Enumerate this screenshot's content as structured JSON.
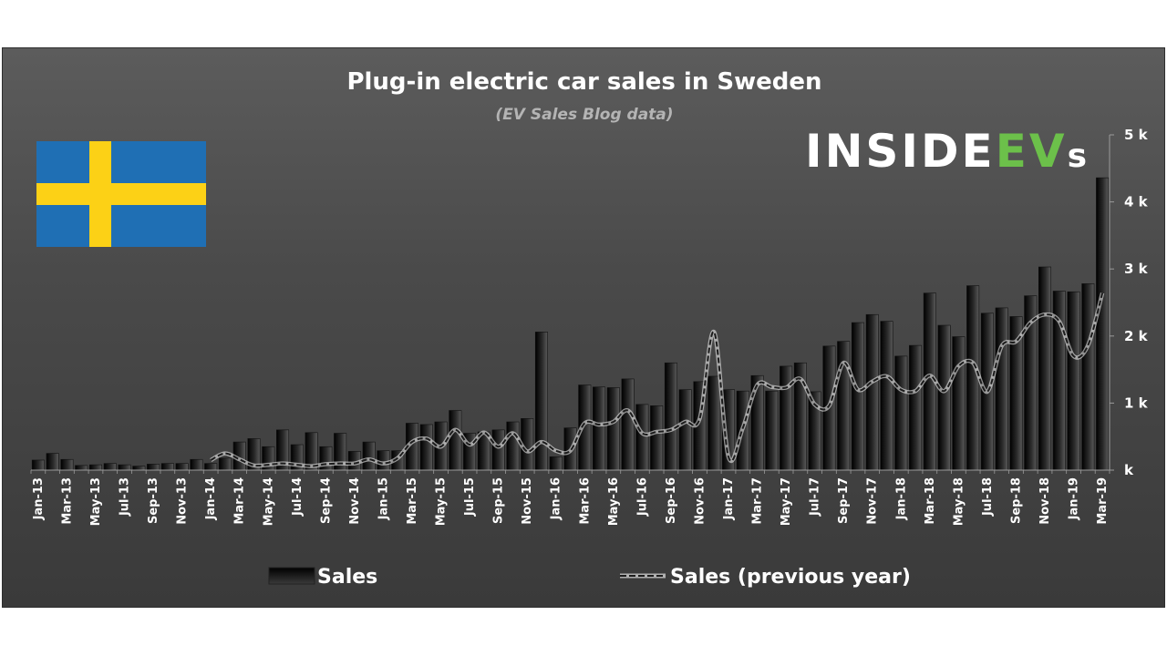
{
  "chart_data": {
    "type": "bar",
    "title": "Plug-in electric car sales in Sweden",
    "subtitle": "(EV Sales Blog data)",
    "xlabel": "",
    "ylabel": "",
    "ylim": [
      0,
      5000
    ],
    "ytick_values": [
      0,
      1000,
      2000,
      3000,
      4000,
      5000
    ],
    "ytick_labels": [
      "k",
      "1 k",
      "2 k",
      "3 k",
      "4 k",
      "5 k"
    ],
    "xtick_labels": [
      "Jan-13",
      "Mar-13",
      "May-13",
      "Jul-13",
      "Sep-13",
      "Nov-13",
      "Jan-14",
      "Mar-14",
      "May-14",
      "Jul-14",
      "Sep-14",
      "Nov-14",
      "Jan-15",
      "Mar-15",
      "May-15",
      "Jul-15",
      "Sep-15",
      "Nov-15",
      "Jan-16",
      "Mar-16",
      "May-16",
      "Jul-16",
      "Sep-16",
      "Nov-16",
      "Jan-17",
      "Mar-17",
      "May-17",
      "Jul-17",
      "Sep-17",
      "Nov-17",
      "Jan-18",
      "Mar-18",
      "May-18",
      "Jul-18",
      "Sep-18",
      "Nov-18",
      "Jan-19",
      "Mar-19"
    ],
    "legend_position": "bottom",
    "grid": false,
    "categories": [
      "Jan-13",
      "Feb-13",
      "Mar-13",
      "Apr-13",
      "May-13",
      "Jun-13",
      "Jul-13",
      "Aug-13",
      "Sep-13",
      "Oct-13",
      "Nov-13",
      "Dec-13",
      "Jan-14",
      "Feb-14",
      "Mar-14",
      "Apr-14",
      "May-14",
      "Jun-14",
      "Jul-14",
      "Aug-14",
      "Sep-14",
      "Oct-14",
      "Nov-14",
      "Dec-14",
      "Jan-15",
      "Feb-15",
      "Mar-15",
      "Apr-15",
      "May-15",
      "Jun-15",
      "Jul-15",
      "Aug-15",
      "Sep-15",
      "Oct-15",
      "Nov-15",
      "Dec-15",
      "Jan-16",
      "Feb-16",
      "Mar-16",
      "Apr-16",
      "May-16",
      "Jun-16",
      "Jul-16",
      "Aug-16",
      "Sep-16",
      "Oct-16",
      "Nov-16",
      "Dec-16",
      "Jan-17",
      "Feb-17",
      "Mar-17",
      "Apr-17",
      "May-17",
      "Jun-17",
      "Jul-17",
      "Aug-17",
      "Sep-17",
      "Oct-17",
      "Nov-17",
      "Dec-17",
      "Jan-18",
      "Feb-18",
      "Mar-18",
      "Apr-18",
      "May-18",
      "Jun-18",
      "Jul-18",
      "Aug-18",
      "Sep-18",
      "Oct-18",
      "Nov-18",
      "Dec-18",
      "Jan-19",
      "Feb-19",
      "Mar-19"
    ],
    "series": [
      {
        "name": "Sales",
        "values": [
          150,
          250,
          160,
          70,
          80,
          100,
          80,
          60,
          90,
          100,
          100,
          160,
          100,
          180,
          420,
          470,
          350,
          600,
          380,
          560,
          350,
          550,
          280,
          420,
          290,
          290,
          700,
          680,
          720,
          890,
          550,
          570,
          600,
          720,
          770,
          2060,
          200,
          630,
          1270,
          1240,
          1230,
          1360,
          980,
          960,
          1600,
          1200,
          1320,
          1400,
          1200,
          1180,
          1410,
          1180,
          1550,
          1600,
          1170,
          1850,
          1920,
          2200,
          2320,
          2220,
          1700,
          1860,
          2640,
          2160,
          1990,
          2750,
          2340,
          2420,
          2290,
          2600,
          3030,
          2670,
          2660,
          2780,
          4360
        ]
      },
      {
        "name": "Sales (previous year)",
        "values": [
          null,
          null,
          null,
          null,
          null,
          null,
          null,
          null,
          null,
          null,
          null,
          null,
          150,
          250,
          160,
          70,
          80,
          100,
          80,
          60,
          90,
          100,
          100,
          160,
          100,
          180,
          420,
          470,
          350,
          600,
          380,
          560,
          350,
          550,
          280,
          420,
          290,
          290,
          700,
          680,
          720,
          890,
          550,
          570,
          600,
          720,
          770,
          2060,
          200,
          630,
          1270,
          1240,
          1230,
          1360,
          980,
          960,
          1600,
          1200,
          1320,
          1400,
          1200,
          1180,
          1410,
          1180,
          1550,
          1600,
          1170,
          1850,
          1920,
          2200,
          2320,
          2220,
          1700,
          1860,
          2640
        ]
      }
    ]
  },
  "logo": {
    "text_main": "INSIDE",
    "text_accent": "EV",
    "text_tail": "s",
    "accent_color": "#6cc04a"
  },
  "flag": {
    "name": "sweden-flag",
    "blue": "#1f6fb4",
    "yellow": "#fcd116"
  }
}
